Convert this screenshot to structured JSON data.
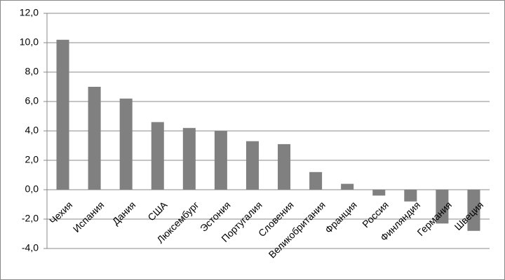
{
  "chart_data": {
    "type": "bar",
    "categories": [
      "Чехия",
      "Испания",
      "Дания",
      "США",
      "Люксембург",
      "Эстония",
      "Португалия",
      "Словения",
      "Великобритания",
      "Франция",
      "Россия",
      "Финляндия",
      "Германия",
      "Швеция"
    ],
    "values": [
      10.2,
      7.0,
      6.2,
      4.6,
      4.2,
      4.0,
      3.3,
      3.1,
      1.2,
      0.4,
      -0.4,
      -0.8,
      -2.3,
      -2.8
    ],
    "color": "#808080",
    "ylim": [
      -4,
      12
    ],
    "yticks": [
      {
        "value": -4,
        "label": "-4,0"
      },
      {
        "value": -2,
        "label": "-2,0"
      },
      {
        "value": 0,
        "label": "0,0"
      },
      {
        "value": 2,
        "label": "2,0"
      },
      {
        "value": 4,
        "label": "4,0"
      },
      {
        "value": 6,
        "label": "6,0"
      },
      {
        "value": 8,
        "label": "8,0"
      },
      {
        "value": 10,
        "label": "10,0"
      },
      {
        "value": 12,
        "label": "12,0"
      }
    ],
    "grid": true
  }
}
